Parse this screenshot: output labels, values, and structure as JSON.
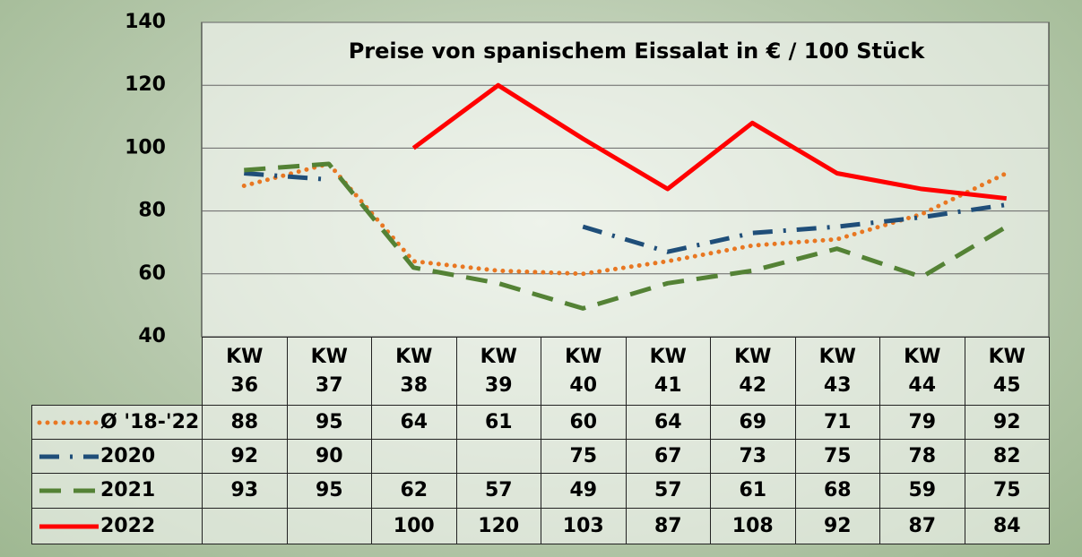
{
  "chart_data": {
    "type": "line",
    "title": "Preise von spanischem Eissalat in € / 100 Stück",
    "categories": [
      "KW\n36",
      "KW\n37",
      "KW\n38",
      "KW\n39",
      "KW\n40",
      "KW\n41",
      "KW\n42",
      "KW\n43",
      "KW\n44",
      "KW\n45"
    ],
    "ylim": [
      40,
      140
    ],
    "yticks": [
      40,
      60,
      80,
      100,
      120,
      140
    ],
    "grid": true,
    "series": [
      {
        "name": "Ø '18-'22",
        "color": "#e87722",
        "style": "dotted",
        "values": [
          88,
          95,
          64,
          61,
          60,
          64,
          69,
          71,
          79,
          92
        ]
      },
      {
        "name": "2020",
        "color": "#1f4e79",
        "style": "dashdot",
        "values": [
          92,
          90,
          null,
          null,
          75,
          67,
          73,
          75,
          78,
          82
        ]
      },
      {
        "name": "2021",
        "color": "#548235",
        "style": "dashed",
        "values": [
          93,
          95,
          62,
          57,
          49,
          57,
          61,
          68,
          59,
          75
        ]
      },
      {
        "name": "2022",
        "color": "#ff0000",
        "style": "solid",
        "values": [
          null,
          null,
          100,
          120,
          103,
          87,
          108,
          92,
          87,
          84
        ]
      }
    ]
  }
}
